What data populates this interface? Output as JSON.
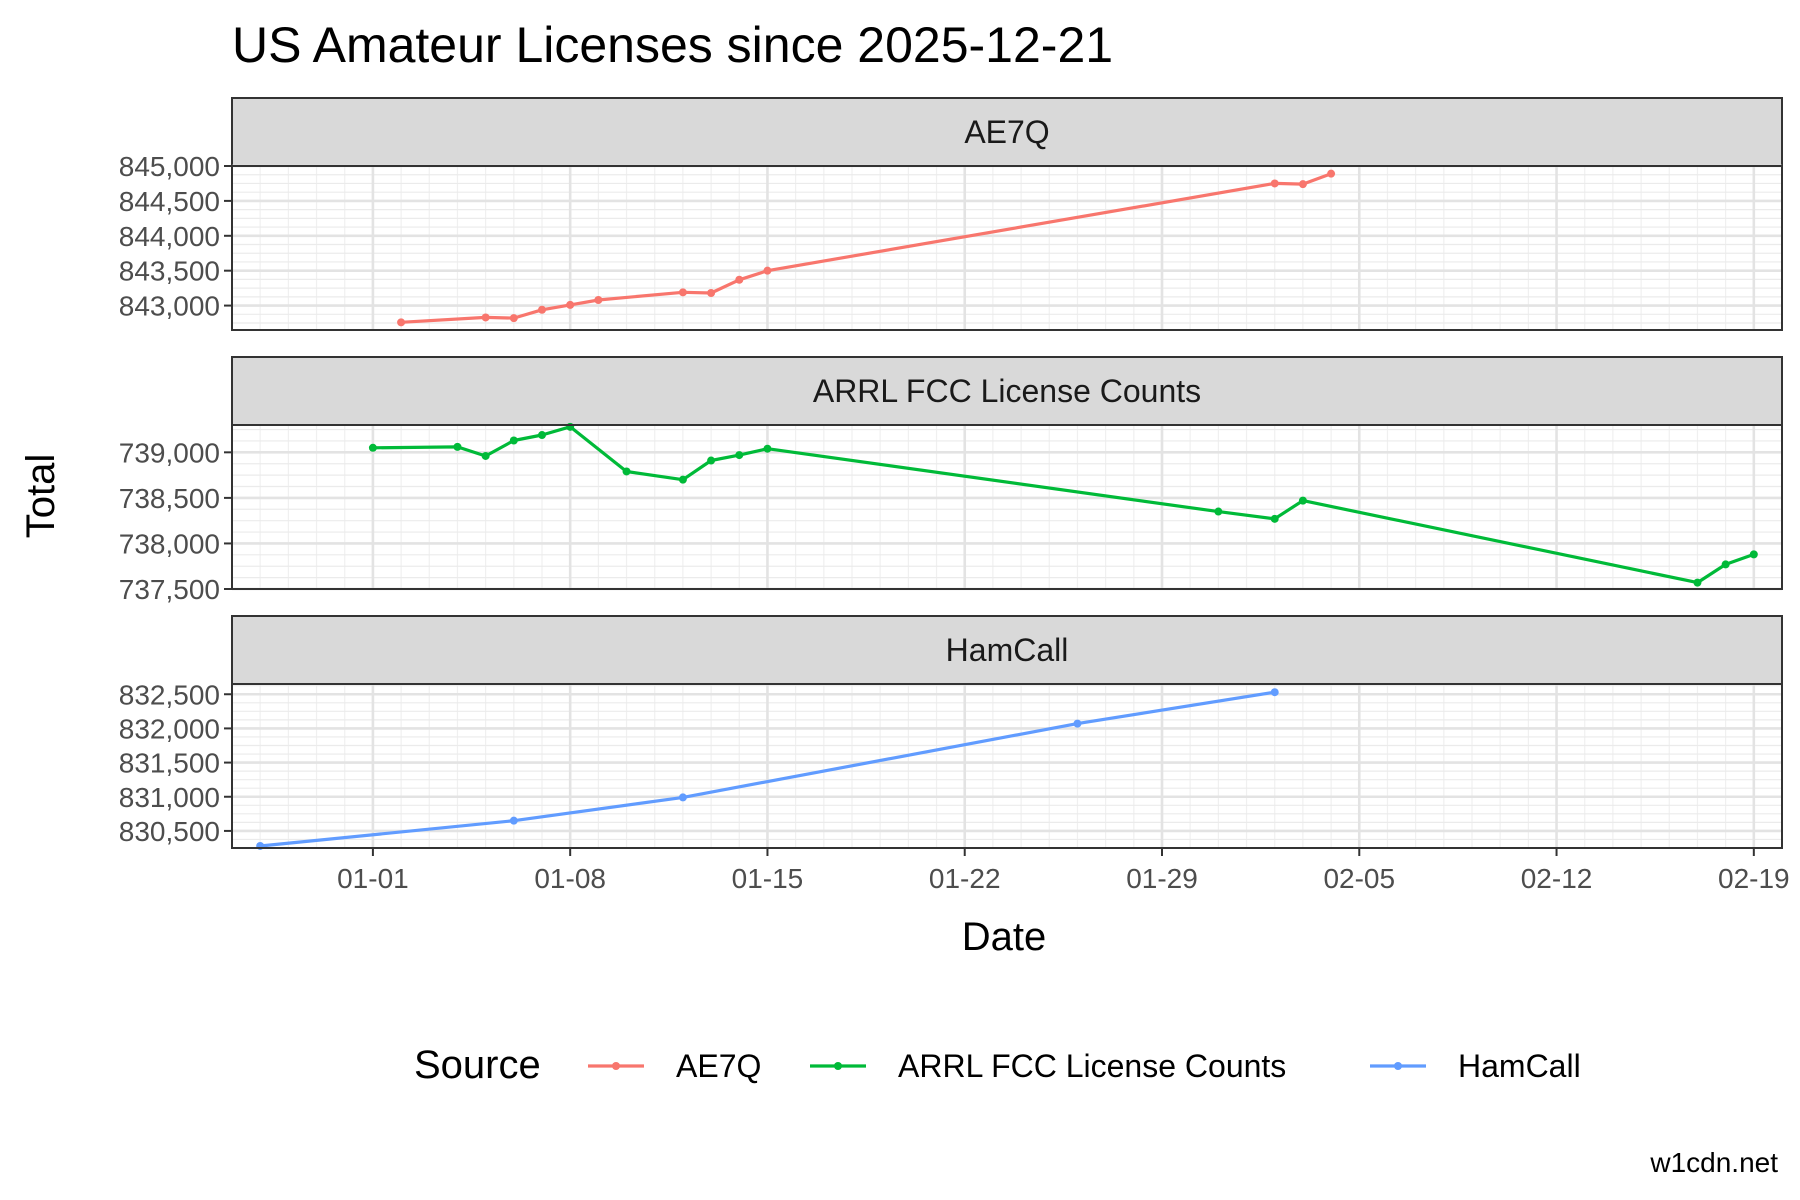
{
  "chart_data": {
    "type": "line",
    "title": "US Amateur Licenses since 2025-12-21",
    "xlabel": "Date",
    "ylabel": "Total",
    "caption": "w1cdn.net",
    "legend": {
      "title": "Source",
      "position": "bottom"
    },
    "x_ticks": [
      "01-01",
      "01-08",
      "01-15",
      "01-22",
      "01-29",
      "02-05",
      "02-12",
      "02-19"
    ],
    "xlim": [
      "2025-12-27",
      "2026-02-20"
    ],
    "grid": true,
    "colors": {
      "AE7Q": "#F8766D",
      "ARRL FCC License Counts": "#00BA38",
      "HamCall": "#619CFF"
    },
    "panels": [
      {
        "name": "AE7Q",
        "ylim": [
          842650,
          845000
        ],
        "y_ticks": [
          843000,
          843500,
          844000,
          844500,
          845000
        ],
        "y_tick_labels": [
          "843,000",
          "843,500",
          "844,000",
          "844,500",
          "845,000"
        ]
      },
      {
        "name": "ARRL FCC License Counts",
        "ylim": [
          737500,
          739300
        ],
        "y_ticks": [
          737500,
          738000,
          738500,
          739000
        ],
        "y_tick_labels": [
          "737,500",
          "738,000",
          "738,500",
          "739,000"
        ]
      },
      {
        "name": "HamCall",
        "ylim": [
          830250,
          832650
        ],
        "y_ticks": [
          830500,
          831000,
          831500,
          832000,
          832500
        ],
        "y_tick_labels": [
          "830,500",
          "831,000",
          "831,500",
          "832,000",
          "832,500"
        ]
      }
    ],
    "series": [
      {
        "name": "AE7Q",
        "x": [
          "2026-01-02",
          "2026-01-05",
          "2026-01-06",
          "2026-01-07",
          "2026-01-08",
          "2026-01-09",
          "2026-01-12",
          "2026-01-13",
          "2026-01-14",
          "2026-01-15",
          "2026-02-02",
          "2026-02-03",
          "2026-02-04"
        ],
        "y": [
          842760,
          842830,
          842820,
          842940,
          843010,
          843080,
          843190,
          843180,
          843370,
          843500,
          844750,
          844740,
          844890
        ]
      },
      {
        "name": "ARRL FCC License Counts",
        "x": [
          "2026-01-01",
          "2026-01-04",
          "2026-01-05",
          "2026-01-06",
          "2026-01-07",
          "2026-01-08",
          "2026-01-10",
          "2026-01-12",
          "2026-01-13",
          "2026-01-14",
          "2026-01-15",
          "2026-01-31",
          "2026-02-02",
          "2026-02-03",
          "2026-02-17",
          "2026-02-18",
          "2026-02-19"
        ],
        "y": [
          739050,
          739060,
          738960,
          739130,
          739190,
          739280,
          738790,
          738700,
          738910,
          738970,
          739040,
          738350,
          738270,
          738470,
          737570,
          737770,
          737880
        ]
      },
      {
        "name": "HamCall",
        "x": [
          "2025-12-28",
          "2026-01-06",
          "2026-01-12",
          "2026-01-26",
          "2026-02-02"
        ],
        "y": [
          830280,
          830650,
          830990,
          832070,
          832530
        ]
      }
    ]
  }
}
